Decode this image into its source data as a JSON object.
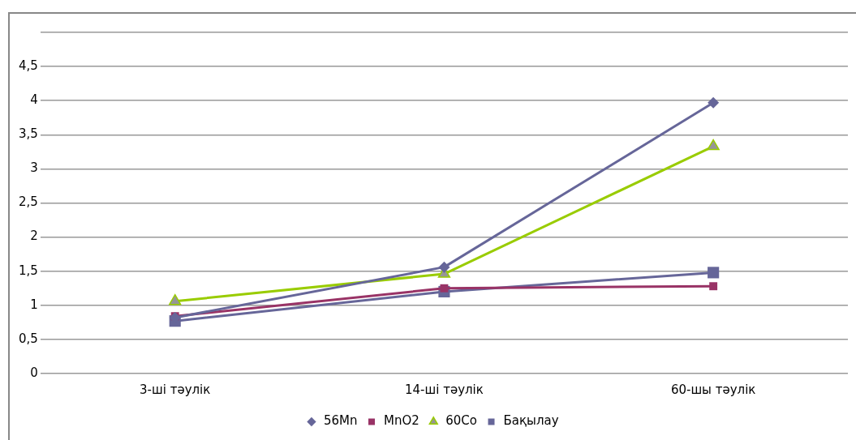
{
  "chart_data": {
    "type": "line",
    "categories": [
      "3-ші тәулік",
      "14-ші тәулік",
      "60-шы тәулік"
    ],
    "series": [
      {
        "name": "56Mn",
        "color": "#666699",
        "marker": "diamond",
        "values": [
          0.82,
          1.56,
          3.97
        ]
      },
      {
        "name": "MnO2",
        "color": "#993366",
        "marker": "square",
        "values": [
          0.84,
          1.25,
          1.28
        ]
      },
      {
        "name": "60Co",
        "color": "#99cc00",
        "marker": "triangle",
        "values": [
          1.06,
          1.46,
          3.33
        ]
      },
      {
        "name": "Бақылау",
        "color": "#666699",
        "marker": "square",
        "values": [
          0.77,
          1.2,
          1.48
        ]
      }
    ],
    "ylim": [
      0,
      5
    ],
    "yticks": [
      0,
      {
        "value": 0.5,
        "label": "0,5"
      },
      1,
      {
        "value": 1.5,
        "label": "1,5"
      },
      2,
      {
        "value": 2.5,
        "label": "2,5"
      },
      3,
      {
        "value": 3.5,
        "label": "3,5"
      },
      4,
      {
        "value": 4.5,
        "label": "4,5"
      },
      {
        "value": 5,
        "label": null
      }
    ],
    "grid": "y",
    "legend": "bottom",
    "line_style": "solid"
  }
}
